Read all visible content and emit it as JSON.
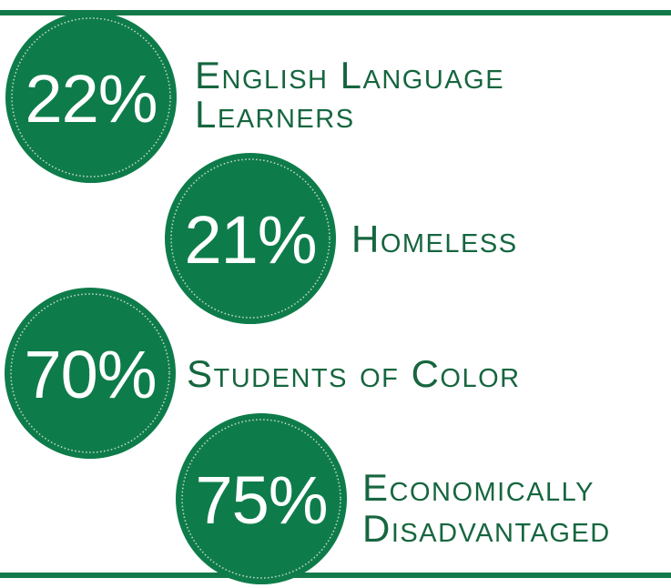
{
  "items": [
    {
      "value": "22%",
      "lines": [
        "English Language",
        "Learners"
      ]
    },
    {
      "value": "21%",
      "lines": [
        "Homeless"
      ]
    },
    {
      "value": "70%",
      "lines": [
        "Students of Color"
      ]
    },
    {
      "value": "75%",
      "lines": [
        "Economically",
        "Disadvantaged"
      ]
    }
  ]
}
